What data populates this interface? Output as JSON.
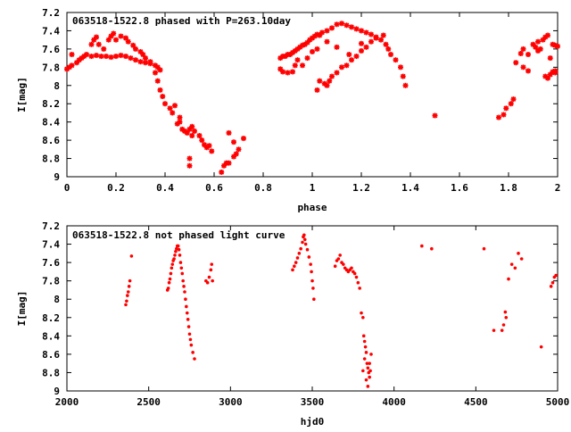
{
  "chart_data": [
    {
      "type": "scatter",
      "title": "063518-1522.8 phased with P=263.10day",
      "xlabel": "phase",
      "ylabel": "I[mag]",
      "xlim": [
        0,
        2
      ],
      "ylim": [
        9,
        7.2
      ],
      "y_inverted": true,
      "marker": "star",
      "color": "#ff0000",
      "grid": false,
      "xticks": [
        "0",
        "0.2",
        "0.4",
        "0.6",
        "0.8",
        "1",
        "1.2",
        "1.4",
        "1.6",
        "1.8",
        "2"
      ],
      "yticks": [
        "7.2",
        "7.4",
        "7.6",
        "7.8",
        "8",
        "8.2",
        "8.4",
        "8.6",
        "8.8",
        "9"
      ],
      "points": [
        [
          0.0,
          7.82
        ],
        [
          0.01,
          7.8
        ],
        [
          0.02,
          7.66
        ],
        [
          0.02,
          7.78
        ],
        [
          0.04,
          7.75
        ],
        [
          0.05,
          7.72
        ],
        [
          0.06,
          7.7
        ],
        [
          0.07,
          7.68
        ],
        [
          0.08,
          7.66
        ],
        [
          0.1,
          7.68
        ],
        [
          0.12,
          7.67
        ],
        [
          0.14,
          7.68
        ],
        [
          0.16,
          7.68
        ],
        [
          0.18,
          7.69
        ],
        [
          0.2,
          7.68
        ],
        [
          0.22,
          7.67
        ],
        [
          0.24,
          7.68
        ],
        [
          0.26,
          7.7
        ],
        [
          0.28,
          7.72
        ],
        [
          0.3,
          7.74
        ],
        [
          0.32,
          7.75
        ],
        [
          0.34,
          7.76
        ],
        [
          0.36,
          7.78
        ],
        [
          0.37,
          7.8
        ],
        [
          0.38,
          7.83
        ],
        [
          0.1,
          7.55
        ],
        [
          0.11,
          7.5
        ],
        [
          0.12,
          7.47
        ],
        [
          0.13,
          7.55
        ],
        [
          0.15,
          7.6
        ],
        [
          0.17,
          7.5
        ],
        [
          0.18,
          7.46
        ],
        [
          0.19,
          7.43
        ],
        [
          0.2,
          7.5
        ],
        [
          0.22,
          7.46
        ],
        [
          0.24,
          7.48
        ],
        [
          0.25,
          7.52
        ],
        [
          0.27,
          7.56
        ],
        [
          0.28,
          7.6
        ],
        [
          0.3,
          7.63
        ],
        [
          0.31,
          7.66
        ],
        [
          0.32,
          7.7
        ],
        [
          0.34,
          7.74
        ],
        [
          0.36,
          7.86
        ],
        [
          0.37,
          7.95
        ],
        [
          0.38,
          8.05
        ],
        [
          0.39,
          8.12
        ],
        [
          0.4,
          8.2
        ],
        [
          0.42,
          8.25
        ],
        [
          0.43,
          8.3
        ],
        [
          0.44,
          8.22
        ],
        [
          0.45,
          8.42
        ],
        [
          0.46,
          8.35
        ],
        [
          0.47,
          8.48
        ],
        [
          0.48,
          8.5
        ],
        [
          0.49,
          8.52
        ],
        [
          0.5,
          8.48
        ],
        [
          0.51,
          8.55
        ],
        [
          0.52,
          8.5
        ],
        [
          0.54,
          8.55
        ],
        [
          0.55,
          8.6
        ],
        [
          0.56,
          8.65
        ],
        [
          0.57,
          8.68
        ],
        [
          0.58,
          8.66
        ],
        [
          0.59,
          8.72
        ],
        [
          0.5,
          8.8
        ],
        [
          0.5,
          8.88
        ],
        [
          0.63,
          8.95
        ],
        [
          0.64,
          8.88
        ],
        [
          0.65,
          8.85
        ],
        [
          0.66,
          8.85
        ],
        [
          0.68,
          8.78
        ],
        [
          0.69,
          8.75
        ],
        [
          0.7,
          8.7
        ],
        [
          0.68,
          8.62
        ],
        [
          0.72,
          8.58
        ],
        [
          0.66,
          8.52
        ],
        [
          0.51,
          8.45
        ],
        [
          0.46,
          8.4
        ],
        [
          0.87,
          7.7
        ],
        [
          0.88,
          7.68
        ],
        [
          0.89,
          7.68
        ],
        [
          0.9,
          7.66
        ],
        [
          0.91,
          7.66
        ],
        [
          0.92,
          7.64
        ],
        [
          0.93,
          7.62
        ],
        [
          0.94,
          7.6
        ],
        [
          0.95,
          7.58
        ],
        [
          0.96,
          7.56
        ],
        [
          0.97,
          7.55
        ],
        [
          0.98,
          7.53
        ],
        [
          0.99,
          7.5
        ],
        [
          1.0,
          7.48
        ],
        [
          1.01,
          7.46
        ],
        [
          1.02,
          7.44
        ],
        [
          1.04,
          7.42
        ],
        [
          1.06,
          7.4
        ],
        [
          1.08,
          7.37
        ],
        [
          1.1,
          7.33
        ],
        [
          1.12,
          7.32
        ],
        [
          1.14,
          7.34
        ],
        [
          1.16,
          7.36
        ],
        [
          1.18,
          7.38
        ],
        [
          1.2,
          7.4
        ],
        [
          1.22,
          7.42
        ],
        [
          1.24,
          7.44
        ],
        [
          1.26,
          7.47
        ],
        [
          1.28,
          7.5
        ],
        [
          1.3,
          7.55
        ],
        [
          1.31,
          7.6
        ],
        [
          1.32,
          7.66
        ],
        [
          1.34,
          7.72
        ],
        [
          1.36,
          7.8
        ],
        [
          1.37,
          7.9
        ],
        [
          1.38,
          8.0
        ],
        [
          0.87,
          7.82
        ],
        [
          0.88,
          7.85
        ],
        [
          0.9,
          7.86
        ],
        [
          0.92,
          7.85
        ],
        [
          0.93,
          7.78
        ],
        [
          0.94,
          7.72
        ],
        [
          0.96,
          7.78
        ],
        [
          0.98,
          7.7
        ],
        [
          1.0,
          7.63
        ],
        [
          1.02,
          7.6
        ],
        [
          1.03,
          7.95
        ],
        [
          1.05,
          7.98
        ],
        [
          1.06,
          8.0
        ],
        [
          1.07,
          7.95
        ],
        [
          1.08,
          7.9
        ],
        [
          1.1,
          7.86
        ],
        [
          1.12,
          7.8
        ],
        [
          1.14,
          7.78
        ],
        [
          1.16,
          7.72
        ],
        [
          1.18,
          7.68
        ],
        [
          1.2,
          7.62
        ],
        [
          1.22,
          7.58
        ],
        [
          1.24,
          7.52
        ],
        [
          1.26,
          7.48
        ],
        [
          1.29,
          7.45
        ],
        [
          1.03,
          7.45
        ],
        [
          1.06,
          7.52
        ],
        [
          1.1,
          7.58
        ],
        [
          1.15,
          7.66
        ],
        [
          1.2,
          7.54
        ],
        [
          1.02,
          8.05
        ],
        [
          1.5,
          8.33
        ],
        [
          1.76,
          8.35
        ],
        [
          1.78,
          8.32
        ],
        [
          1.79,
          8.25
        ],
        [
          1.81,
          8.2
        ],
        [
          1.82,
          8.15
        ],
        [
          1.83,
          7.75
        ],
        [
          1.85,
          7.65
        ],
        [
          1.86,
          7.6
        ],
        [
          1.88,
          7.66
        ],
        [
          1.9,
          7.55
        ],
        [
          1.91,
          7.58
        ],
        [
          1.92,
          7.52
        ],
        [
          1.93,
          7.6
        ],
        [
          1.94,
          7.5
        ],
        [
          1.95,
          7.47
        ],
        [
          1.96,
          7.45
        ],
        [
          1.97,
          7.7
        ],
        [
          1.98,
          7.55
        ],
        [
          1.99,
          7.56
        ],
        [
          2.0,
          7.57
        ],
        [
          1.95,
          7.9
        ],
        [
          1.96,
          7.92
        ],
        [
          1.97,
          7.88
        ],
        [
          1.98,
          7.85
        ],
        [
          1.99,
          7.86
        ],
        [
          1.86,
          7.8
        ],
        [
          1.88,
          7.84
        ],
        [
          1.92,
          7.62
        ],
        [
          1.99,
          7.84
        ]
      ]
    },
    {
      "type": "scatter",
      "title": "063518-1522.8 not phased light curve",
      "xlabel": "hjd0",
      "ylabel": "I[mag]",
      "xlim": [
        2000,
        5000
      ],
      "ylim": [
        9,
        7.2
      ],
      "y_inverted": true,
      "marker": "dot",
      "color": "#ff0000",
      "grid": false,
      "xticks": [
        "2000",
        "2500",
        "3000",
        "3500",
        "4000",
        "4500",
        "5000"
      ],
      "yticks": [
        "7.2",
        "7.4",
        "7.6",
        "7.8",
        "8",
        "8.2",
        "8.4",
        "8.6",
        "8.8",
        "9"
      ],
      "points": [
        [
          2360,
          8.06
        ],
        [
          2365,
          8.02
        ],
        [
          2370,
          7.96
        ],
        [
          2375,
          7.92
        ],
        [
          2380,
          7.86
        ],
        [
          2385,
          7.8
        ],
        [
          2395,
          7.53
        ],
        [
          2615,
          7.9
        ],
        [
          2620,
          7.88
        ],
        [
          2625,
          7.82
        ],
        [
          2630,
          7.78
        ],
        [
          2635,
          7.72
        ],
        [
          2640,
          7.66
        ],
        [
          2645,
          7.62
        ],
        [
          2650,
          7.58
        ],
        [
          2655,
          7.56
        ],
        [
          2660,
          7.52
        ],
        [
          2665,
          7.48
        ],
        [
          2670,
          7.45
        ],
        [
          2675,
          7.42
        ],
        [
          2680,
          7.42
        ],
        [
          2685,
          7.46
        ],
        [
          2690,
          7.52
        ],
        [
          2695,
          7.6
        ],
        [
          2700,
          7.66
        ],
        [
          2705,
          7.72
        ],
        [
          2710,
          7.8
        ],
        [
          2715,
          7.86
        ],
        [
          2720,
          7.92
        ],
        [
          2725,
          8.0
        ],
        [
          2730,
          8.08
        ],
        [
          2735,
          8.15
        ],
        [
          2740,
          8.22
        ],
        [
          2745,
          8.3
        ],
        [
          2750,
          8.38
        ],
        [
          2755,
          8.44
        ],
        [
          2760,
          8.5
        ],
        [
          2770,
          8.58
        ],
        [
          2780,
          8.65
        ],
        [
          2850,
          7.8
        ],
        [
          2860,
          7.82
        ],
        [
          2870,
          7.76
        ],
        [
          2880,
          7.68
        ],
        [
          2885,
          7.62
        ],
        [
          2890,
          7.8
        ],
        [
          3380,
          7.68
        ],
        [
          3390,
          7.64
        ],
        [
          3400,
          7.6
        ],
        [
          3410,
          7.55
        ],
        [
          3420,
          7.5
        ],
        [
          3430,
          7.45
        ],
        [
          3440,
          7.38
        ],
        [
          3445,
          7.32
        ],
        [
          3450,
          7.3
        ],
        [
          3455,
          7.35
        ],
        [
          3460,
          7.4
        ],
        [
          3470,
          7.46
        ],
        [
          3480,
          7.54
        ],
        [
          3490,
          7.62
        ],
        [
          3495,
          7.7
        ],
        [
          3500,
          7.8
        ],
        [
          3505,
          7.88
        ],
        [
          3510,
          8.0
        ],
        [
          3640,
          7.64
        ],
        [
          3650,
          7.58
        ],
        [
          3660,
          7.56
        ],
        [
          3670,
          7.52
        ],
        [
          3680,
          7.6
        ],
        [
          3690,
          7.62
        ],
        [
          3700,
          7.66
        ],
        [
          3710,
          7.68
        ],
        [
          3720,
          7.7
        ],
        [
          3730,
          7.68
        ],
        [
          3740,
          7.66
        ],
        [
          3750,
          7.7
        ],
        [
          3760,
          7.72
        ],
        [
          3770,
          7.76
        ],
        [
          3780,
          7.82
        ],
        [
          3790,
          7.88
        ],
        [
          3800,
          8.15
        ],
        [
          3810,
          8.2
        ],
        [
          3815,
          8.4
        ],
        [
          3820,
          8.46
        ],
        [
          3825,
          8.52
        ],
        [
          3830,
          8.58
        ],
        [
          3835,
          8.7
        ],
        [
          3840,
          8.75
        ],
        [
          3845,
          8.8
        ],
        [
          3850,
          8.85
        ],
        [
          3855,
          8.78
        ],
        [
          3820,
          8.65
        ],
        [
          3810,
          8.78
        ],
        [
          3830,
          8.88
        ],
        [
          3840,
          8.95
        ],
        [
          3850,
          8.7
        ],
        [
          3860,
          8.6
        ],
        [
          4170,
          7.42
        ],
        [
          4230,
          7.45
        ],
        [
          4550,
          7.45
        ],
        [
          4610,
          8.34
        ],
        [
          4660,
          8.34
        ],
        [
          4670,
          8.28
        ],
        [
          4680,
          8.14
        ],
        [
          4685,
          8.2
        ],
        [
          4700,
          7.78
        ],
        [
          4720,
          7.62
        ],
        [
          4740,
          7.66
        ],
        [
          4760,
          7.5
        ],
        [
          4780,
          7.56
        ],
        [
          4900,
          8.52
        ],
        [
          4960,
          7.86
        ],
        [
          4970,
          7.82
        ],
        [
          4980,
          7.76
        ],
        [
          4990,
          7.74
        ]
      ]
    }
  ]
}
